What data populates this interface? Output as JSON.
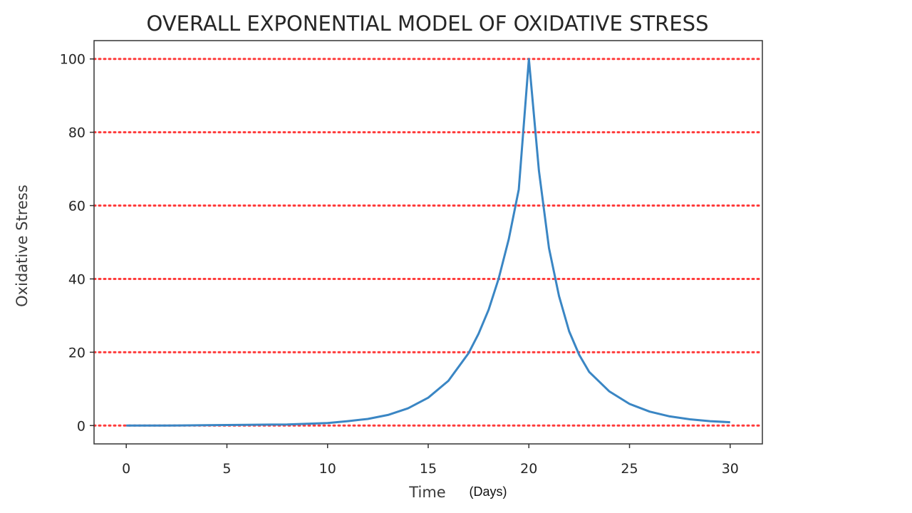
{
  "chart_data": {
    "type": "line",
    "title": "OVERALL EXPONENTIAL MODEL OF OXIDATIVE STRESS",
    "xlabel": "Time",
    "xunit": "(Days)",
    "ylabel": "Oxidative Stress",
    "xlim": [
      -1.6,
      31.6
    ],
    "ylim": [
      -5,
      105
    ],
    "xticks": [
      0,
      5,
      10,
      15,
      20,
      25,
      30
    ],
    "yticks": [
      0,
      20,
      40,
      60,
      80,
      100
    ],
    "grid": "horizontal dotted red lines at y ticks",
    "legend": "none",
    "series": [
      {
        "x": [
          0,
          2,
          4,
          6,
          8,
          10,
          11,
          12,
          13,
          14,
          15,
          16,
          17,
          17.5,
          18,
          18.5,
          19,
          19.5,
          20,
          20.5,
          21,
          21.5,
          22,
          22.5,
          23,
          24,
          25,
          26,
          27,
          28,
          29,
          30
        ],
        "values": [
          0.0,
          0.0,
          0.1,
          0.2,
          0.3,
          0.7,
          1.2,
          1.8,
          2.9,
          4.7,
          7.6,
          12.2,
          19.7,
          25.0,
          31.6,
          40.1,
          50.8,
          64.4,
          100.0,
          69.5,
          48.4,
          35.3,
          25.7,
          19.3,
          14.6,
          9.3,
          5.9,
          3.8,
          2.5,
          1.7,
          1.2,
          0.9
        ]
      }
    ],
    "colors": {
      "line": "#3a86c4",
      "grid": "#ff3b3b",
      "frame": "#333333"
    }
  }
}
